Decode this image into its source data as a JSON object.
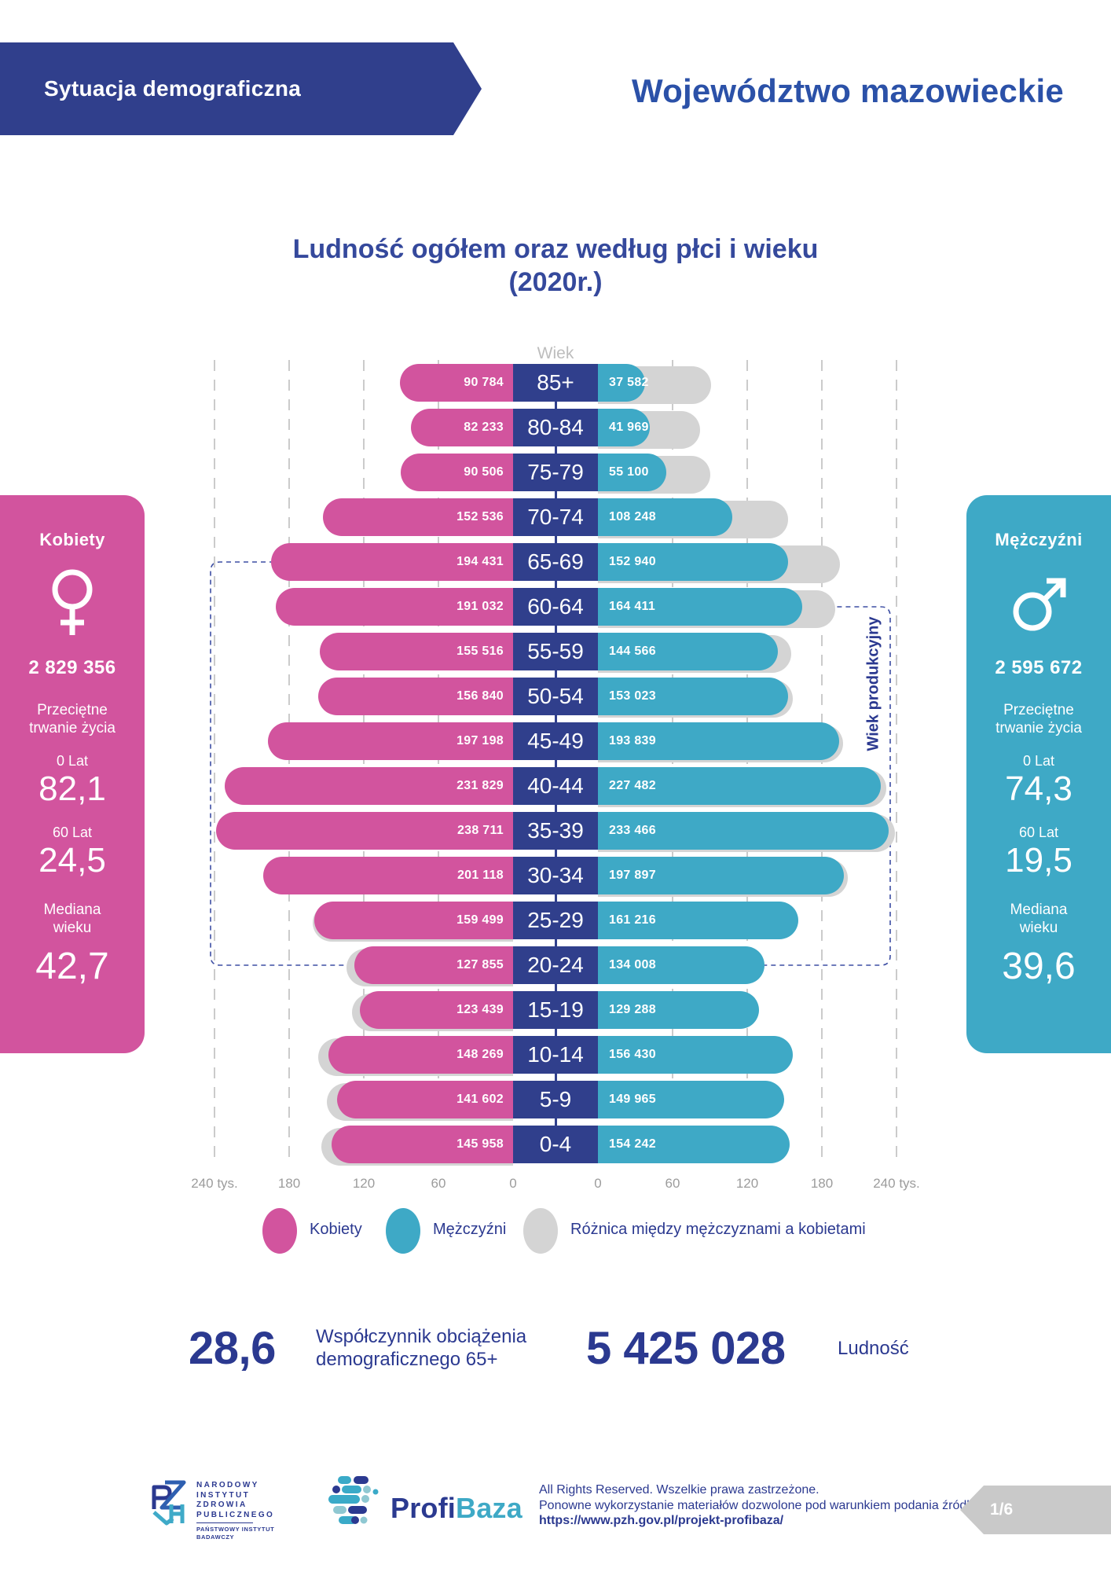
{
  "header": {
    "banner_label": "Sytuacja demograficzna",
    "region_title": "Województwo mazowieckie"
  },
  "title": {
    "line1": "Ludność ogółem oraz według płci i wieku",
    "line2": "(2020r.)"
  },
  "chart": {
    "wiek_label": "Wiek",
    "working_age_label": "Wiek produkcyjny",
    "axis_left": [
      "240 tys.",
      "180",
      "120",
      "60",
      "0"
    ],
    "axis_right": [
      "0",
      "60",
      "120",
      "180",
      "240 tys."
    ]
  },
  "chart_data": {
    "type": "bar",
    "subtype": "population-pyramid",
    "title": "Ludność ogółem oraz według płci i wieku (2020r.)",
    "categories": [
      "85+",
      "80-84",
      "75-79",
      "70-74",
      "65-69",
      "60-64",
      "55-59",
      "50-54",
      "45-49",
      "40-44",
      "35-39",
      "30-34",
      "25-29",
      "20-24",
      "15-19",
      "10-14",
      "5-9",
      "0-4"
    ],
    "series": [
      {
        "name": "Kobiety",
        "values": [
          90784,
          82233,
          90506,
          152536,
          194431,
          191032,
          155516,
          156840,
          197198,
          231829,
          238711,
          201118,
          159499,
          127855,
          123439,
          148269,
          141602,
          145958
        ]
      },
      {
        "name": "Mężczyźni",
        "values": [
          37582,
          41969,
          55100,
          108248,
          152940,
          164411,
          144566,
          153023,
          193839,
          227482,
          233466,
          197897,
          161216,
          134008,
          129288,
          156430,
          149965,
          154242
        ]
      }
    ],
    "difference_series_label": "Różnica między mężczyznami a kobietami",
    "x_axis": {
      "tick_values_thousands": [
        0,
        60,
        120,
        180,
        240
      ],
      "unit": "tys.",
      "max_each_side": 240000
    },
    "center_axis_label": "Wiek",
    "grid": "dashed-vertical",
    "legend_position": "bottom"
  },
  "colors": {
    "female_pink": "#D2549E",
    "male_teal": "#3EA9C6",
    "navy": "#303F8C",
    "difference_gray": "#D4D4D4",
    "text_navy": "#2B3990"
  },
  "legend": {
    "items": [
      {
        "label": "Kobiety"
      },
      {
        "label": "Mężczyźni"
      },
      {
        "label": "Różnica między mężczyznami a kobietami"
      }
    ]
  },
  "female_panel": {
    "title": "Kobiety",
    "total": "2 829 356",
    "life_label": "Przeciętne trwanie życia",
    "at_birth_label": "0 Lat",
    "at_birth_value": "82,1",
    "at_60_label": "60 Lat",
    "at_60_value": "24,5",
    "median_label": "Mediana wieku",
    "median_value": "42,7"
  },
  "male_panel": {
    "title": "Mężczyźni",
    "total": "2 595 672",
    "life_label": "Przeciętne trwanie życia",
    "at_birth_label": "0 Lat",
    "at_birth_value": "74,3",
    "at_60_label": "60 Lat",
    "at_60_value": "19,5",
    "median_label": "Mediana wieku",
    "median_value": "39,6"
  },
  "summary": {
    "ratio_value": "28,6",
    "ratio_label_line1": "Współczynnik obciążenia",
    "ratio_label_line2": "demograficznego 65+",
    "population_value": "5 425 028",
    "population_label": "Ludność"
  },
  "footer": {
    "institute_lines": [
      "NARODOWY",
      "INSTYTUT",
      "ZDROWIA",
      "PUBLICZNEGO",
      "PAŃSTWOWY INSTYTUT",
      "BADAWCZY"
    ],
    "brand_primary": "Profi",
    "brand_secondary": "Baza",
    "rights_line1": "All Rights Reserved. Wszelkie prawa zastrzeżone.",
    "rights_line2": "Ponowne wykorzystanie materiałów dozwolone pod warunkiem podania źródła:",
    "source_url": "https://www.pzh.gov.pl/projekt-profibaza/",
    "page_indicator": "1/6"
  }
}
